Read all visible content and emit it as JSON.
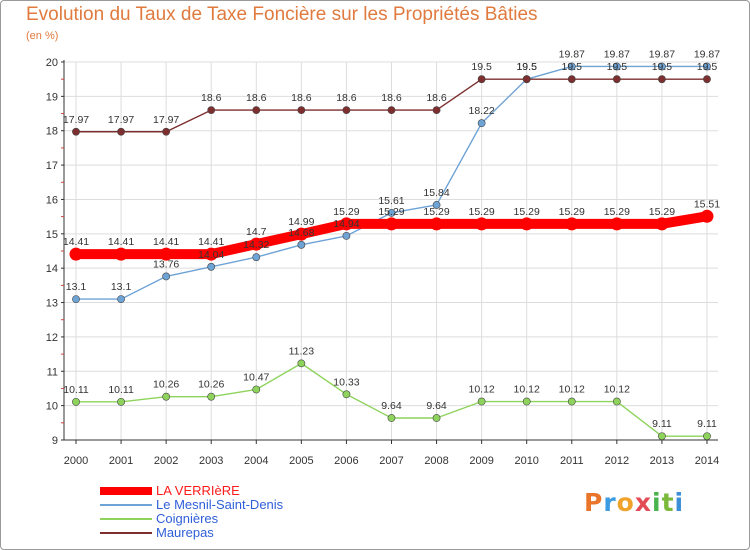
{
  "header": {
    "title": "Evolution du Taux de Taxe Foncière sur les Propriétés Bâties",
    "subtitle": "(en %)"
  },
  "brand": {
    "letters": [
      "P",
      "r",
      "o",
      "x",
      "i",
      "t",
      "i"
    ],
    "colors": [
      "#e9752b",
      "#3d9be0",
      "#f0a22b",
      "#e34b55",
      "#49b34c",
      "#7ab93b",
      "#3c8fd6"
    ]
  },
  "chart_data": {
    "type": "line",
    "title": "Evolution du Taux de Taxe Foncière sur les Propriétés Bâties",
    "ylabel": "(en %)",
    "xlabel": "",
    "x": [
      "2000",
      "2001",
      "2002",
      "2003",
      "2004",
      "2005",
      "2006",
      "2007",
      "2008",
      "2009",
      "2010",
      "2011",
      "2012",
      "2013",
      "2014"
    ],
    "ylim": [
      9,
      20
    ],
    "yticks": [
      "9",
      "10",
      "11",
      "12",
      "13",
      "14",
      "15",
      "16",
      "17",
      "18",
      "19",
      "20"
    ],
    "grid": true,
    "legend_position": "bottom-left",
    "series": [
      {
        "name": "LA VERRIèRE",
        "color": "#ff0000",
        "emphasis": "thick",
        "values": [
          14.41,
          14.41,
          14.41,
          14.41,
          14.7,
          14.99,
          15.29,
          15.29,
          15.29,
          15.29,
          15.29,
          15.29,
          15.29,
          15.29,
          15.51
        ],
        "labels": [
          "14.41",
          "14.41",
          "14.41",
          "14.41",
          "14.7",
          "14.99",
          "15.29",
          "15.29",
          "15.29",
          "15.29",
          "15.29",
          "15.29",
          "15.29",
          "15.29",
          "15.51"
        ]
      },
      {
        "name": "Le Mesnil-Saint-Denis",
        "color": "#6ea3d6",
        "emphasis": "normal",
        "values": [
          13.1,
          13.1,
          13.76,
          14.04,
          14.32,
          14.68,
          14.94,
          15.61,
          15.84,
          18.22,
          19.5,
          19.87,
          19.87,
          19.87,
          19.87
        ],
        "labels": [
          "13.1",
          "13.1",
          "13.76",
          "14.04",
          "14.32",
          "14.68",
          "14.94",
          "15.61",
          "15.84",
          "18.22",
          "19.5",
          "19.87",
          "19.87",
          "19.87",
          "19.87"
        ]
      },
      {
        "name": "Coignières",
        "color": "#8ed35c",
        "emphasis": "normal",
        "values": [
          10.11,
          10.11,
          10.26,
          10.26,
          10.47,
          11.23,
          10.33,
          9.64,
          9.64,
          10.12,
          10.12,
          10.12,
          10.12,
          9.11,
          9.11
        ],
        "labels": [
          "10.11",
          "10.11",
          "10.26",
          "10.26",
          "10.47",
          "11.23",
          "10.33",
          "9.64",
          "9.64",
          "10.12",
          "10.12",
          "10.12",
          "10.12",
          "9.11",
          "9.11"
        ]
      },
      {
        "name": "Maurepas",
        "color": "#7d2f2f",
        "emphasis": "normal",
        "values": [
          17.97,
          17.97,
          17.97,
          18.6,
          18.6,
          18.6,
          18.6,
          18.6,
          18.6,
          19.5,
          19.5,
          19.5,
          19.5,
          19.5,
          19.5
        ],
        "labels": [
          "17.97",
          "17.97",
          "17.97",
          "18.6",
          "18.6",
          "18.6",
          "18.6",
          "18.6",
          "18.6",
          "19.5",
          "19.5",
          "19.5",
          "19.5",
          "19.5",
          "19.5"
        ]
      }
    ]
  }
}
